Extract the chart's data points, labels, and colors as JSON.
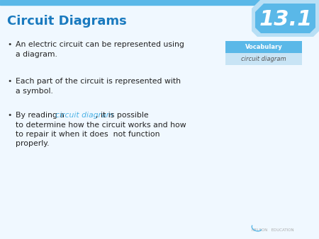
{
  "title": "Circuit Diagrams",
  "section_num": "13.1",
  "title_color": "#1a7abf",
  "background_color": "#f0f8ff",
  "top_bar_color": "#5ab8e8",
  "bullet_color": "#222222",
  "highlight_color": "#4db3e6",
  "vocab_box_header": "Vocabulary",
  "vocab_box_header_bg": "#5ab8e8",
  "vocab_box_header_text": "#ffffff",
  "vocab_box_term": "circuit diagram",
  "vocab_box_term_bg": "#c8e4f5",
  "vocab_box_term_text": "#555555",
  "section_badge_outer": "#b8dff5",
  "section_badge_inner": "#5ab8e8",
  "section_badge_text": "#ffffff",
  "nelson_text_color": "#aaaaaa",
  "fontsize_title": 13,
  "fontsize_body": 7.8,
  "fontsize_badge": 22,
  "fontsize_vocab": 6.0
}
